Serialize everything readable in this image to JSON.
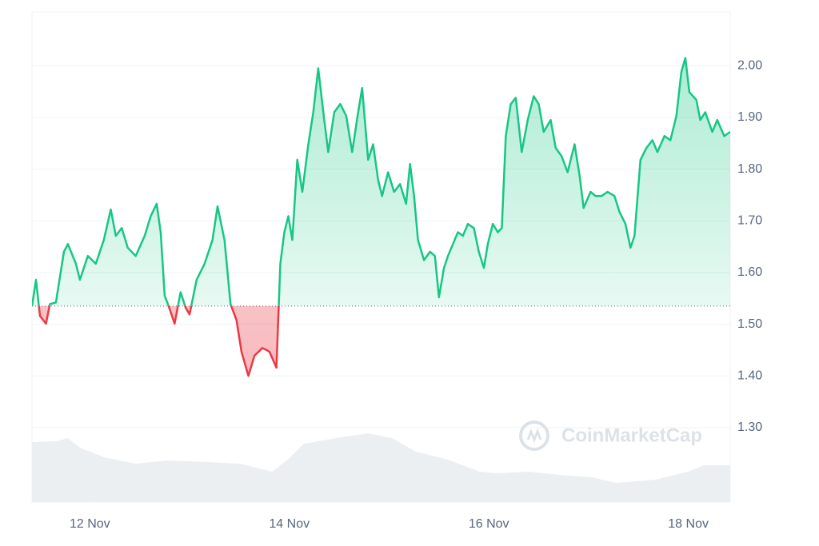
{
  "chart_data": {
    "type": "line",
    "watermark": "CoinMarketCap",
    "x": [
      0.42,
      0.46,
      0.5,
      0.56,
      0.6,
      0.66,
      0.74,
      0.78,
      0.86,
      0.9,
      0.98,
      1.06,
      1.14,
      1.21,
      1.26,
      1.32,
      1.38,
      1.46,
      1.55,
      1.61,
      1.67,
      1.71,
      1.75,
      1.79,
      1.85,
      1.91,
      1.96,
      2.0,
      2.07,
      2.15,
      2.23,
      2.28,
      2.35,
      2.41,
      2.47,
      2.52,
      2.59,
      2.65,
      2.73,
      2.8,
      2.87,
      2.91,
      2.95,
      2.99,
      3.03,
      3.08,
      3.13,
      3.19,
      3.24,
      3.29,
      3.35,
      3.39,
      3.45,
      3.51,
      3.57,
      3.63,
      3.69,
      3.73,
      3.79,
      3.84,
      3.89,
      3.93,
      3.99,
      4.05,
      4.11,
      4.17,
      4.21,
      4.25,
      4.29,
      4.35,
      4.41,
      4.46,
      4.5,
      4.55,
      4.59,
      4.64,
      4.69,
      4.74,
      4.79,
      4.85,
      4.9,
      4.95,
      4.99,
      5.04,
      5.09,
      5.13,
      5.17,
      5.22,
      5.27,
      5.33,
      5.39,
      5.45,
      5.5,
      5.55,
      5.62,
      5.67,
      5.73,
      5.79,
      5.86,
      5.91,
      5.95,
      6.02,
      6.07,
      6.13,
      6.19,
      6.26,
      6.31,
      6.37,
      6.42,
      6.46,
      6.52,
      6.58,
      6.64,
      6.69,
      6.76,
      6.82,
      6.88,
      6.93,
      6.97,
      7.01,
      7.08,
      7.12,
      7.17,
      7.24,
      7.29,
      7.36,
      7.42
    ],
    "values": [
      1.535,
      1.586,
      1.516,
      1.501,
      1.539,
      1.542,
      1.64,
      1.655,
      1.617,
      1.586,
      1.632,
      1.617,
      1.663,
      1.722,
      1.671,
      1.686,
      1.648,
      1.632,
      1.671,
      1.709,
      1.733,
      1.678,
      1.555,
      1.535,
      1.501,
      1.562,
      1.532,
      1.519,
      1.586,
      1.617,
      1.663,
      1.728,
      1.663,
      1.539,
      1.508,
      1.447,
      1.4,
      1.439,
      1.454,
      1.447,
      1.416,
      1.617,
      1.678,
      1.709,
      1.663,
      1.818,
      1.756,
      1.848,
      1.91,
      1.995,
      1.895,
      1.833,
      1.91,
      1.926,
      1.903,
      1.833,
      1.91,
      1.957,
      1.818,
      1.848,
      1.779,
      1.748,
      1.794,
      1.756,
      1.771,
      1.733,
      1.81,
      1.748,
      1.663,
      1.624,
      1.64,
      1.632,
      1.552,
      1.609,
      1.632,
      1.655,
      1.678,
      1.671,
      1.694,
      1.686,
      1.64,
      1.609,
      1.655,
      1.694,
      1.678,
      1.686,
      1.864,
      1.926,
      1.938,
      1.833,
      1.895,
      1.941,
      1.926,
      1.872,
      1.895,
      1.841,
      1.825,
      1.794,
      1.848,
      1.787,
      1.725,
      1.756,
      1.748,
      1.748,
      1.756,
      1.748,
      1.717,
      1.694,
      1.648,
      1.671,
      1.818,
      1.841,
      1.856,
      1.833,
      1.864,
      1.856,
      1.903,
      1.988,
      2.015,
      1.949,
      1.934,
      1.895,
      1.91,
      1.872,
      1.895,
      1.864,
      1.872
    ],
    "baseline": 1.535,
    "color_up": "#16c784",
    "color_down": "#ea3943",
    "xlim": [
      0.42,
      7.42
    ],
    "ylim": [
      1.156,
      2.104
    ],
    "xticks": [
      {
        "value": 1,
        "label": "12 Nov"
      },
      {
        "value": 3,
        "label": "14 Nov"
      },
      {
        "value": 5,
        "label": "16 Nov"
      },
      {
        "value": 7,
        "label": "18 Nov"
      }
    ],
    "yticks": [
      {
        "value": 1.3,
        "label": "1.30"
      },
      {
        "value": 1.4,
        "label": "1.40"
      },
      {
        "value": 1.5,
        "label": "1.50"
      },
      {
        "value": 1.6,
        "label": "1.60"
      },
      {
        "value": 1.7,
        "label": "1.70"
      },
      {
        "value": 1.8,
        "label": "1.80"
      },
      {
        "value": 1.9,
        "label": "1.90"
      },
      {
        "value": 2.0,
        "label": "2.00"
      }
    ],
    "grid": true
  }
}
